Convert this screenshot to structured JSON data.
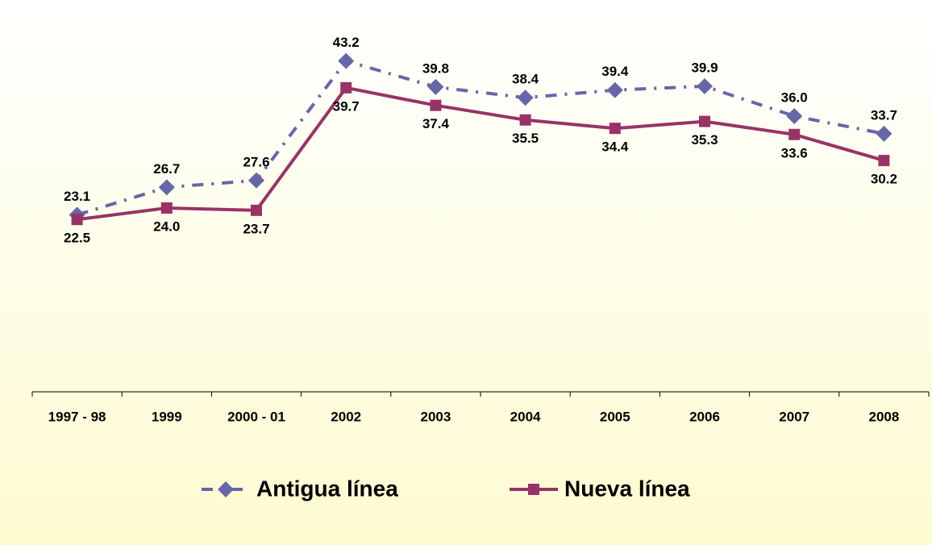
{
  "chart_data": {
    "type": "line",
    "categories": [
      "1997 - 98",
      "1999",
      "2000 - 01",
      "2002",
      "2003",
      "2004",
      "2005",
      "2006",
      "2007",
      "2008"
    ],
    "series": [
      {
        "name": "Antigua línea",
        "color": "#6666aa",
        "marker": "diamond",
        "dash": "dash-dot",
        "values": [
          23.1,
          26.7,
          27.6,
          43.2,
          39.8,
          38.4,
          39.4,
          39.9,
          36.0,
          33.7
        ],
        "value_labels": [
          "23.1",
          "26.7",
          "27.6",
          "43.2",
          "39.8",
          "38.4",
          "39.4",
          "39.9",
          "36.0",
          "33.7"
        ]
      },
      {
        "name": "Nueva línea",
        "color": "#993366",
        "marker": "square",
        "dash": "solid",
        "values": [
          22.5,
          24.0,
          23.7,
          39.7,
          37.4,
          35.5,
          34.4,
          35.3,
          33.6,
          30.2
        ],
        "value_labels": [
          "22.5",
          "24.0",
          "23.7",
          "39.7",
          "37.4",
          "35.5",
          "34.4",
          "35.3",
          "33.6",
          "30.2"
        ]
      }
    ],
    "ylim": [
      0,
      48
    ],
    "legend": "bottom"
  }
}
